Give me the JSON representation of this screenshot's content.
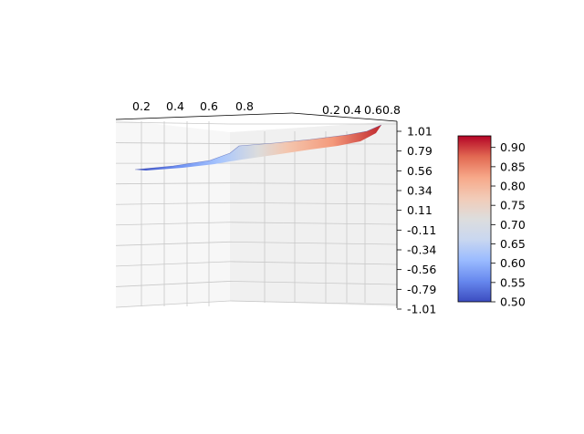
{
  "chart_data": {
    "type": "surface3d",
    "title": "",
    "xlabel": "",
    "ylabel": "",
    "zlabel": "",
    "x_ticks": [
      "0.2",
      "0.4",
      "0.6",
      "0.8"
    ],
    "y_ticks": [
      "0.2",
      "0.4",
      "0.6",
      "0.8"
    ],
    "z_ticks": [
      "1.01",
      "0.79",
      "0.56",
      "0.34",
      "0.11",
      "-0.11",
      "-0.34",
      "-0.56",
      "-0.79",
      "-1.01"
    ],
    "zlim": [
      -1.01,
      1.01
    ],
    "colormap": "coolwarm",
    "surface": {
      "x_range": [
        0.0,
        1.0
      ],
      "y_range": [
        0.0,
        1.0
      ],
      "z_range": [
        0.5,
        0.95
      ]
    },
    "colorbar": {
      "ticks": [
        "0.90",
        "0.85",
        "0.80",
        "0.75",
        "0.70",
        "0.65",
        "0.60",
        "0.55",
        "0.50"
      ],
      "range": [
        0.5,
        0.93
      ],
      "colors": [
        "#3b4cc0",
        "#6788ee",
        "#9abbff",
        "#c9d7f0",
        "#dddddd",
        "#f2cbb7",
        "#f7a889",
        "#e26952",
        "#b40426"
      ]
    },
    "grid": true
  }
}
